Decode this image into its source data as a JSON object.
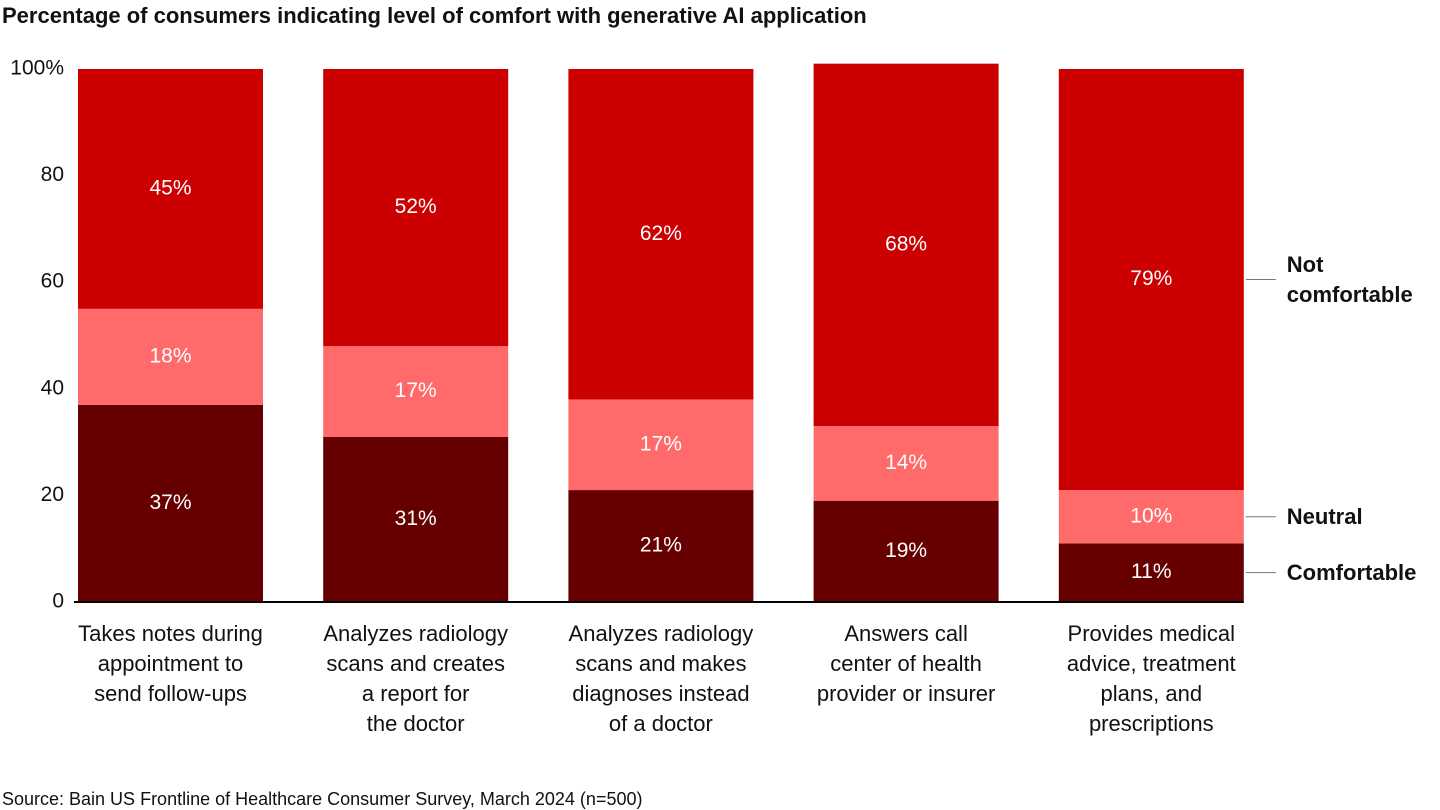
{
  "chart_data": {
    "type": "stacked-bar",
    "title": "Percentage of consumers indicating level of comfort with generative AI application",
    "categories": [
      "Takes notes during\nappointment to\nsend follow-ups",
      "Analyzes radiology\nscans and creates\na report for\nthe doctor",
      "Analyzes radiology\nscans and makes\ndiagnoses instead\nof a doctor",
      "Answers call\ncenter of health\nprovider or insurer",
      "Provides medical\nadvice, treatment\nplans, and\nprescriptions"
    ],
    "series": [
      {
        "name": "Comfortable",
        "color": "#660000",
        "values": [
          37,
          31,
          21,
          19,
          11
        ],
        "value_labels": [
          "37%",
          "31%",
          "21%",
          "19%",
          "11%"
        ]
      },
      {
        "name": "Neutral",
        "color": "#ff6b6b",
        "values": [
          18,
          17,
          17,
          14,
          10
        ],
        "value_labels": [
          "18%",
          "17%",
          "17%",
          "14%",
          "10%"
        ]
      },
      {
        "name": "Not\ncomfortable",
        "color": "#cc0000",
        "values": [
          45,
          52,
          62,
          68,
          79
        ],
        "value_labels": [
          "45%",
          "52%",
          "62%",
          "68%",
          "79%"
        ]
      }
    ],
    "ylim": [
      0,
      100
    ],
    "yticks": [
      0,
      20,
      40,
      60,
      80,
      {
        "value": 100,
        "label": "100%"
      }
    ],
    "grid": false,
    "source": "Source: Bain US Frontline of Healthcare Consumer Survey, March 2024 (n=500)"
  }
}
